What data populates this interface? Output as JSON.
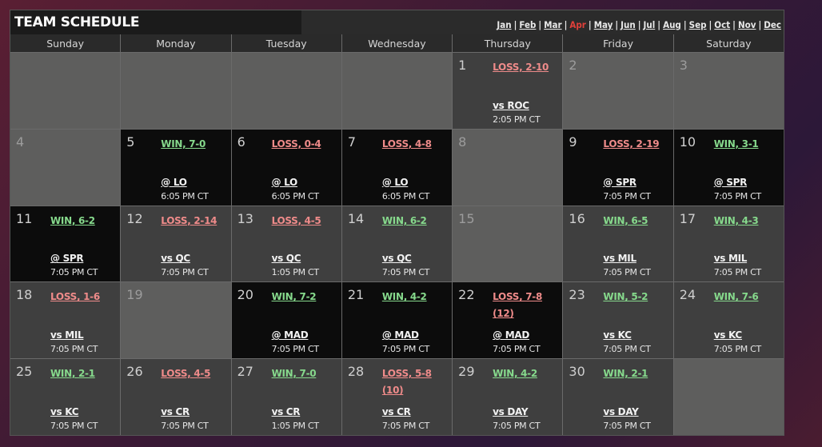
{
  "title": "TEAM SCHEDULE",
  "months": [
    {
      "label": "Jan",
      "active": false
    },
    {
      "label": "Feb",
      "active": false
    },
    {
      "label": "Mar",
      "active": false
    },
    {
      "label": "Apr",
      "active": true
    },
    {
      "label": "May",
      "active": false
    },
    {
      "label": "Jun",
      "active": false
    },
    {
      "label": "Jul",
      "active": false
    },
    {
      "label": "Aug",
      "active": false
    },
    {
      "label": "Sep",
      "active": false
    },
    {
      "label": "Oct",
      "active": false
    },
    {
      "label": "Nov",
      "active": false
    },
    {
      "label": "Dec",
      "active": false
    }
  ],
  "weekdays": [
    "Sunday",
    "Monday",
    "Tuesday",
    "Wednesday",
    "Thursday",
    "Friday",
    "Saturday"
  ],
  "colors": {
    "win": "#86d98c",
    "loss": "#ef8b8a",
    "active_month": "#e0403a",
    "away_bg": "#0c0c0c",
    "home_bg": "#3f3f3f",
    "off_bg": "#5e5e5d"
  },
  "days": [
    {
      "type": "empty"
    },
    {
      "type": "empty"
    },
    {
      "type": "empty"
    },
    {
      "type": "empty"
    },
    {
      "day": "1",
      "type": "home",
      "result": "LOSS, 2-10",
      "outcome": "loss",
      "opponent": "vs ROC",
      "time": "2:05 PM CT"
    },
    {
      "day": "2",
      "type": "off"
    },
    {
      "day": "3",
      "type": "off"
    },
    {
      "day": "4",
      "type": "off"
    },
    {
      "day": "5",
      "type": "away",
      "result": "WIN, 7-0",
      "outcome": "win",
      "opponent": "@ LO",
      "time": "6:05 PM CT"
    },
    {
      "day": "6",
      "type": "away",
      "result": "LOSS, 0-4",
      "outcome": "loss",
      "opponent": "@ LO",
      "time": "6:05 PM CT"
    },
    {
      "day": "7",
      "type": "away",
      "result": "LOSS, 4-8",
      "outcome": "loss",
      "opponent": "@ LO",
      "time": "6:05 PM CT"
    },
    {
      "day": "8",
      "type": "off"
    },
    {
      "day": "9",
      "type": "away",
      "result": "LOSS, 2-19",
      "outcome": "loss",
      "opponent": "@ SPR",
      "time": "7:05 PM CT"
    },
    {
      "day": "10",
      "type": "away",
      "result": "WIN, 3-1",
      "outcome": "win",
      "opponent": "@ SPR",
      "time": "7:05 PM CT"
    },
    {
      "day": "11",
      "type": "away",
      "result": "WIN, 6-2",
      "outcome": "win",
      "opponent": "@ SPR",
      "time": "7:05 PM CT"
    },
    {
      "day": "12",
      "type": "home",
      "result": "LOSS, 2-14",
      "outcome": "loss",
      "opponent": "vs QC",
      "time": "7:05 PM CT"
    },
    {
      "day": "13",
      "type": "home",
      "result": "LOSS, 4-5",
      "outcome": "loss",
      "opponent": "vs QC",
      "time": "1:05 PM CT"
    },
    {
      "day": "14",
      "type": "home",
      "result": "WIN, 6-2",
      "outcome": "win",
      "opponent": "vs QC",
      "time": "7:05 PM CT"
    },
    {
      "day": "15",
      "type": "off"
    },
    {
      "day": "16",
      "type": "home",
      "result": "WIN, 6-5",
      "outcome": "win",
      "opponent": "vs MIL",
      "time": "7:05 PM CT"
    },
    {
      "day": "17",
      "type": "home",
      "result": "WIN, 4-3",
      "outcome": "win",
      "opponent": "vs MIL",
      "time": "7:05 PM CT"
    },
    {
      "day": "18",
      "type": "home",
      "result": "LOSS, 1-6",
      "outcome": "loss",
      "opponent": "vs MIL",
      "time": "7:05 PM CT"
    },
    {
      "day": "19",
      "type": "off"
    },
    {
      "day": "20",
      "type": "away",
      "result": "WIN, 7-2",
      "outcome": "win",
      "opponent": "@ MAD",
      "time": "7:05 PM CT"
    },
    {
      "day": "21",
      "type": "away",
      "result": "WIN, 4-2",
      "outcome": "win",
      "opponent": "@ MAD",
      "time": "7:05 PM CT"
    },
    {
      "day": "22",
      "type": "away",
      "result": "LOSS, 7-8 (12)",
      "outcome": "loss",
      "opponent": "@ MAD",
      "time": "7:05 PM CT"
    },
    {
      "day": "23",
      "type": "home",
      "result": "WIN, 5-2",
      "outcome": "win",
      "opponent": "vs KC",
      "time": "7:05 PM CT"
    },
    {
      "day": "24",
      "type": "home",
      "result": "WIN, 7-6",
      "outcome": "win",
      "opponent": "vs KC",
      "time": "7:05 PM CT"
    },
    {
      "day": "25",
      "type": "home",
      "result": "WIN, 2-1",
      "outcome": "win",
      "opponent": "vs KC",
      "time": "7:05 PM CT"
    },
    {
      "day": "26",
      "type": "home",
      "result": "LOSS, 4-5",
      "outcome": "loss",
      "opponent": "vs CR",
      "time": "7:05 PM CT"
    },
    {
      "day": "27",
      "type": "home",
      "result": "WIN, 7-0",
      "outcome": "win",
      "opponent": "vs CR",
      "time": "1:05 PM CT"
    },
    {
      "day": "28",
      "type": "home",
      "result": "LOSS, 5-8 (10)",
      "outcome": "loss",
      "opponent": "vs CR",
      "time": "7:05 PM CT"
    },
    {
      "day": "29",
      "type": "home",
      "result": "WIN, 4-2",
      "outcome": "win",
      "opponent": "vs DAY",
      "time": "7:05 PM CT"
    },
    {
      "day": "30",
      "type": "home",
      "result": "WIN, 2-1",
      "outcome": "win",
      "opponent": "vs DAY",
      "time": "7:05 PM CT"
    },
    {
      "type": "empty"
    }
  ]
}
